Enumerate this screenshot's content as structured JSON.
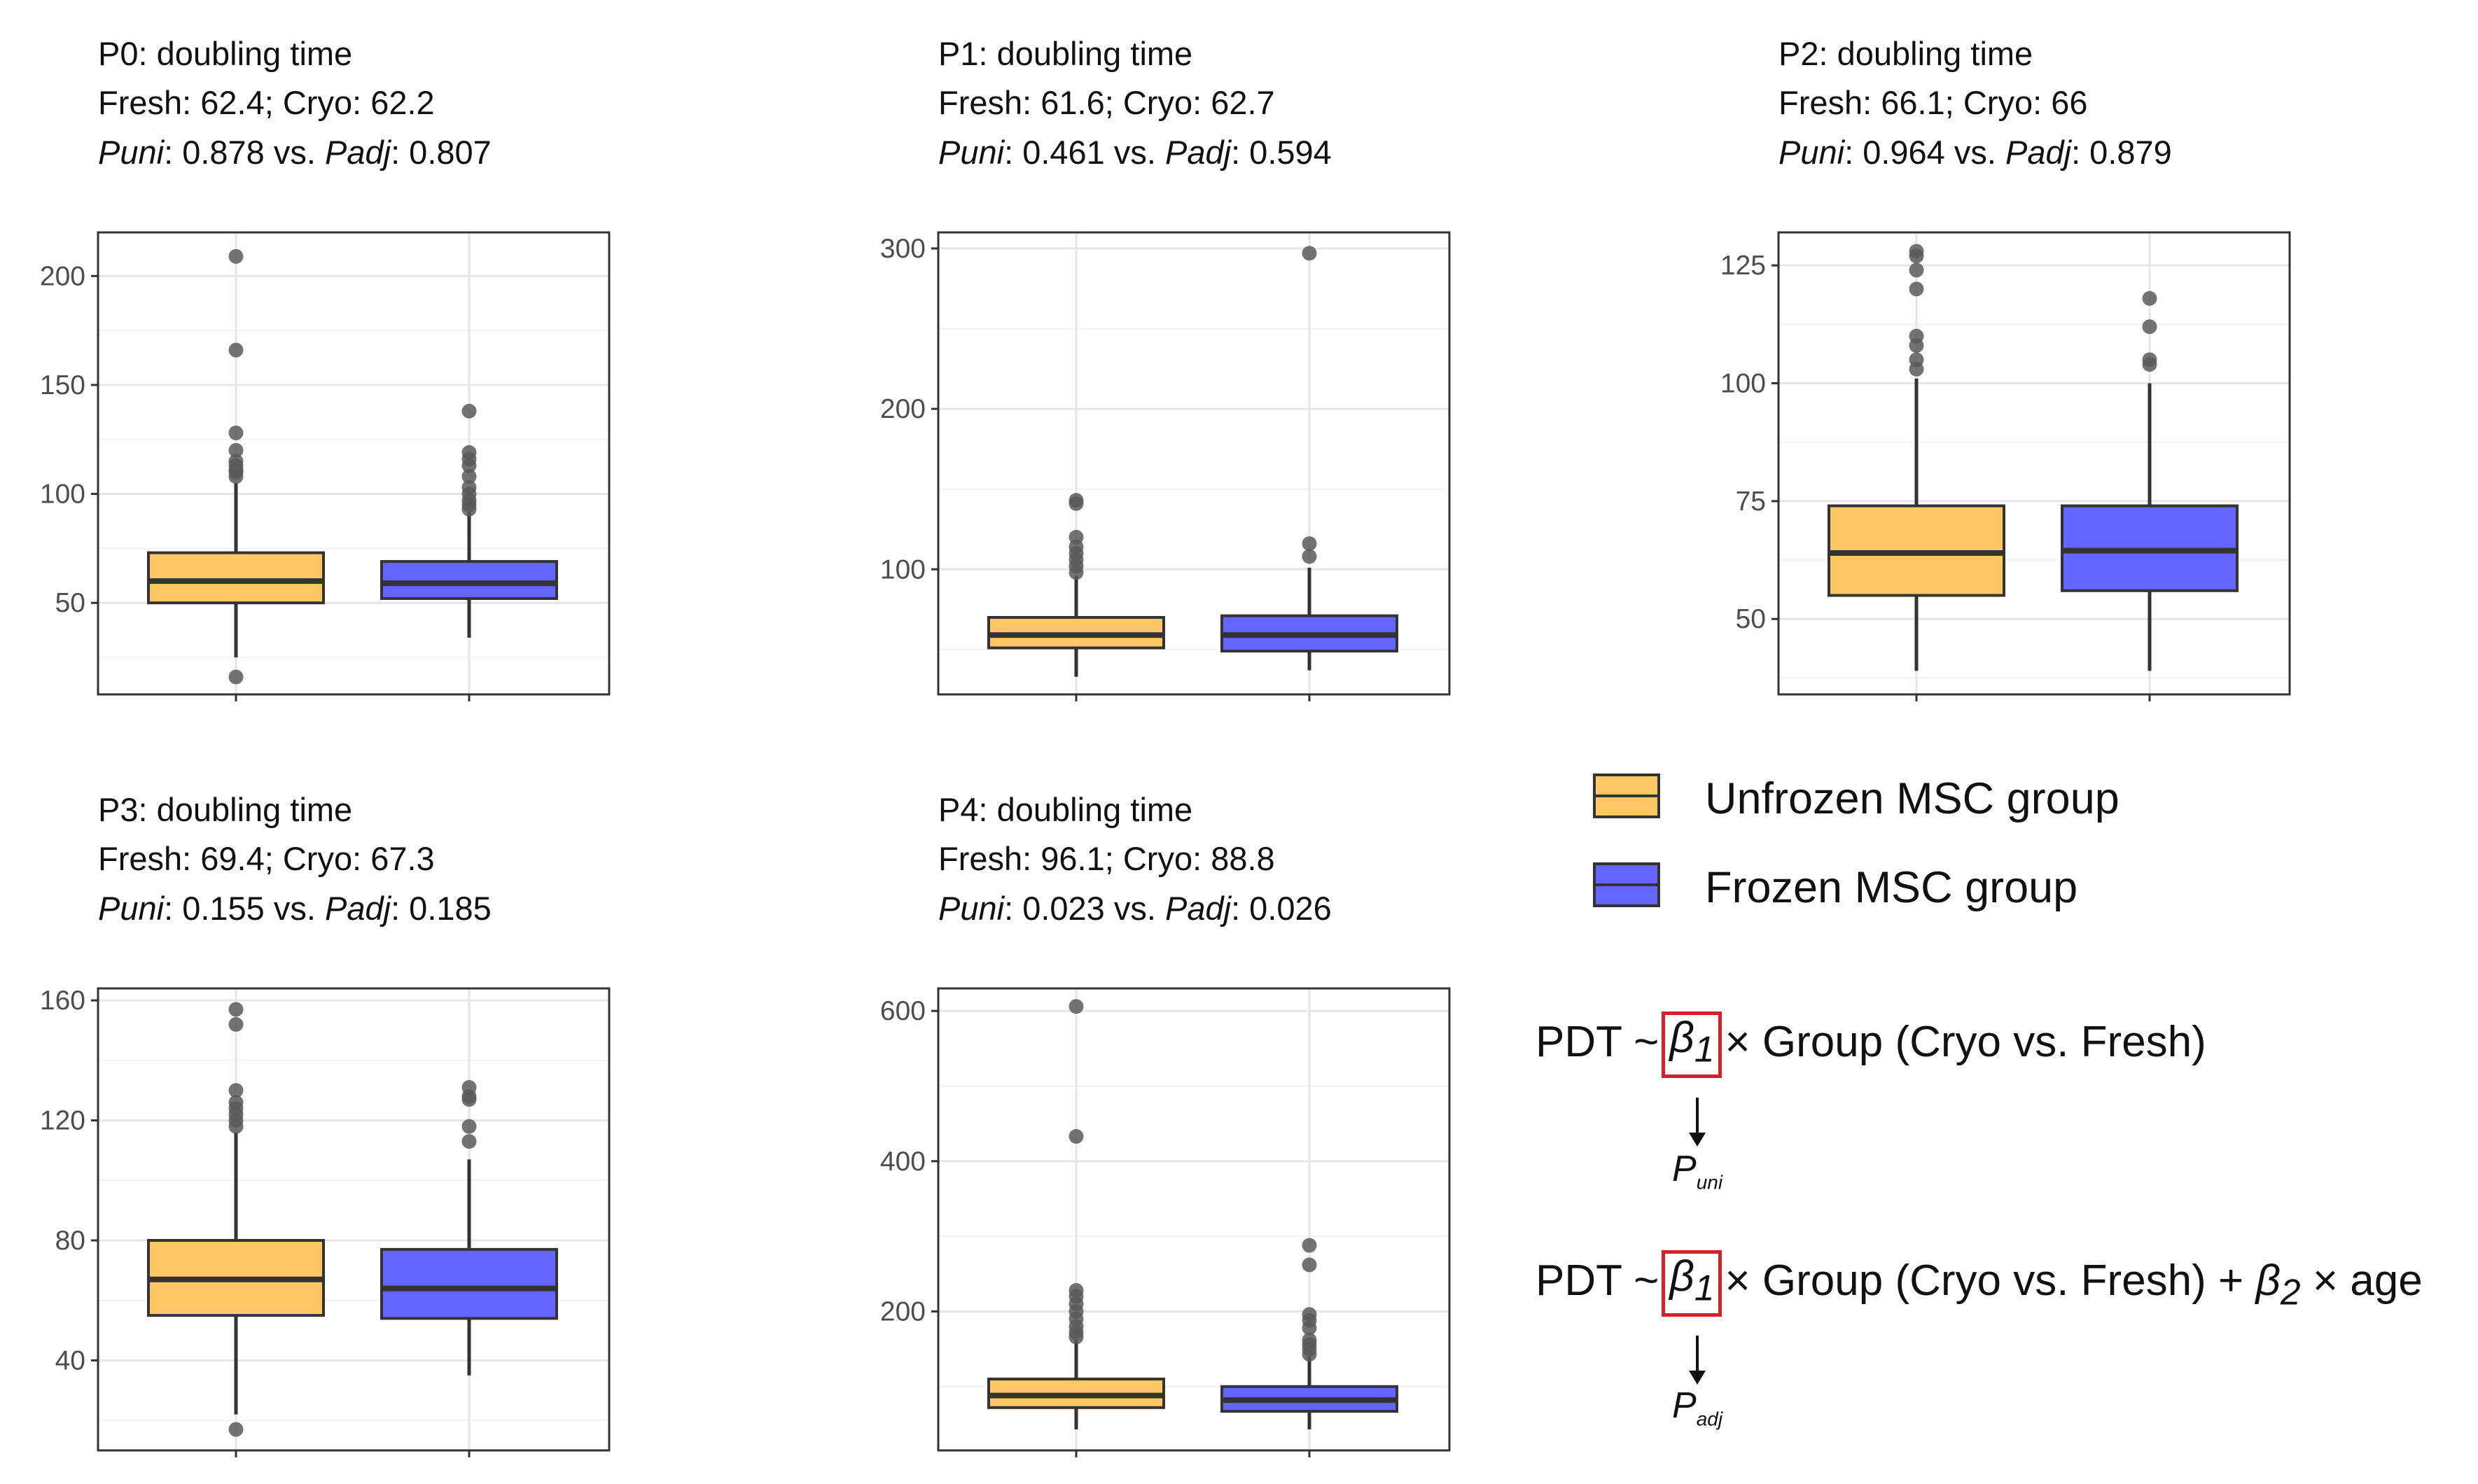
{
  "colors": {
    "fresh": "#ffc864",
    "cryo": "#6464ff",
    "outlier": "#595959",
    "frame": "#333333",
    "grid_major": "#e6e6e6",
    "grid_minor": "#f2f2f2",
    "highlight_box": "#d5202a"
  },
  "chart_data": [
    {
      "type": "box",
      "id": "P0",
      "title": "P0: doubling time",
      "means_line": "Fresh: 62.4; Cryo: 62.2",
      "p_uni_label": "Puni",
      "p_uni_value": ": 0.878 vs. ",
      "p_adj_label": "Padj",
      "p_adj_value": ": 0.807",
      "ylim": [
        8,
        220
      ],
      "yticks": [
        50,
        100,
        150,
        200
      ],
      "groups": [
        {
          "name": "Fresh",
          "q1": 50,
          "median": 60,
          "q3": 73,
          "whisker_low": 25,
          "whisker_high": 105,
          "outliers": [
            16,
            108,
            110,
            111,
            113,
            115,
            120,
            128,
            166,
            209
          ]
        },
        {
          "name": "Cryo",
          "q1": 52,
          "median": 59,
          "q3": 69,
          "whisker_low": 34,
          "whisker_high": 92,
          "outliers": [
            93,
            95,
            97,
            100,
            103,
            108,
            113,
            116,
            119,
            138
          ]
        }
      ]
    },
    {
      "type": "box",
      "id": "P1",
      "title": "P1: doubling time",
      "means_line": "Fresh: 61.6; Cryo: 62.7",
      "p_uni_label": "Puni",
      "p_uni_value": ": 0.461 vs. ",
      "p_adj_label": "Padj",
      "p_adj_value": ": 0.594",
      "ylim": [
        22,
        310
      ],
      "yticks": [
        100,
        200,
        300
      ],
      "groups": [
        {
          "name": "Fresh",
          "q1": 51,
          "median": 59,
          "q3": 70,
          "whisker_low": 33,
          "whisker_high": 96,
          "outliers": [
            98,
            102,
            106,
            110,
            114,
            120,
            141,
            143
          ]
        },
        {
          "name": "Cryo",
          "q1": 49,
          "median": 59,
          "q3": 71,
          "whisker_low": 37,
          "whisker_high": 101,
          "outliers": [
            108,
            116,
            297
          ]
        }
      ]
    },
    {
      "type": "box",
      "id": "P2",
      "title": "P2: doubling time",
      "means_line": "Fresh: 66.1; Cryo: 66",
      "p_uni_label": "Puni",
      "p_uni_value": ": 0.964 vs. ",
      "p_adj_label": "Padj",
      "p_adj_value": ": 0.879",
      "ylim": [
        34,
        132
      ],
      "yticks": [
        50,
        75,
        100,
        125
      ],
      "groups": [
        {
          "name": "Fresh",
          "q1": 55,
          "median": 64,
          "q3": 74,
          "whisker_low": 39,
          "whisker_high": 101,
          "outliers": [
            103,
            105,
            108,
            110,
            120,
            124,
            127,
            128
          ]
        },
        {
          "name": "Cryo",
          "q1": 56,
          "median": 64.5,
          "q3": 74,
          "whisker_low": 39,
          "whisker_high": 100,
          "outliers": [
            104,
            105,
            112,
            118
          ]
        }
      ]
    },
    {
      "type": "box",
      "id": "P3",
      "title": "P3: doubling time",
      "means_line": "Fresh: 69.4; Cryo: 67.3",
      "p_uni_label": "Puni",
      "p_uni_value": ": 0.155 vs. ",
      "p_adj_label": "Padj",
      "p_adj_value": ": 0.185",
      "ylim": [
        10,
        164
      ],
      "yticks": [
        40,
        80,
        120,
        160
      ],
      "groups": [
        {
          "name": "Fresh",
          "q1": 55,
          "median": 67,
          "q3": 80,
          "whisker_low": 22,
          "whisker_high": 116,
          "outliers": [
            17,
            118,
            120,
            122,
            124,
            126,
            130,
            152,
            157
          ]
        },
        {
          "name": "Cryo",
          "q1": 54,
          "median": 64,
          "q3": 77,
          "whisker_low": 35,
          "whisker_high": 107,
          "outliers": [
            113,
            118,
            127,
            128,
            131
          ]
        }
      ]
    },
    {
      "type": "box",
      "id": "P4",
      "title": "P4: doubling time",
      "means_line": "Fresh: 96.1; Cryo: 88.8",
      "p_uni_label": "Puni",
      "p_uni_value": ": 0.023 vs. ",
      "p_adj_label": "Padj",
      "p_adj_value": ": 0.026",
      "ylim": [
        15,
        630
      ],
      "yticks": [
        200,
        400,
        600
      ],
      "groups": [
        {
          "name": "Fresh",
          "q1": 72,
          "median": 88,
          "q3": 110,
          "whisker_low": 43,
          "whisker_high": 162,
          "outliers": [
            166,
            172,
            180,
            190,
            200,
            210,
            220,
            228,
            433,
            606
          ]
        },
        {
          "name": "Cryo",
          "q1": 67,
          "median": 82,
          "q3": 100,
          "whisker_low": 43,
          "whisker_high": 140,
          "outliers": [
            143,
            150,
            156,
            162,
            178,
            188,
            196,
            262,
            288
          ]
        }
      ]
    }
  ],
  "legend": [
    {
      "label": "Unfrozen MSC group",
      "color": "#ffc864"
    },
    {
      "label": "Frozen MSC group",
      "color": "#6464ff"
    }
  ],
  "formula_uni": {
    "lhs": "PDT ~",
    "beta": "β",
    "beta_sub": "1",
    "rhs": "× Group (Cryo vs. Fresh)",
    "p_label": "P",
    "p_sub": "uni"
  },
  "formula_adj": {
    "lhs": "PDT ~",
    "beta": "β",
    "beta_sub": "1",
    "rhs": "× Group (Cryo vs. Fresh) +",
    "beta2": "β",
    "beta2_sub": "2",
    "rhs2": "× age",
    "p_label": "P",
    "p_sub": "adj"
  }
}
